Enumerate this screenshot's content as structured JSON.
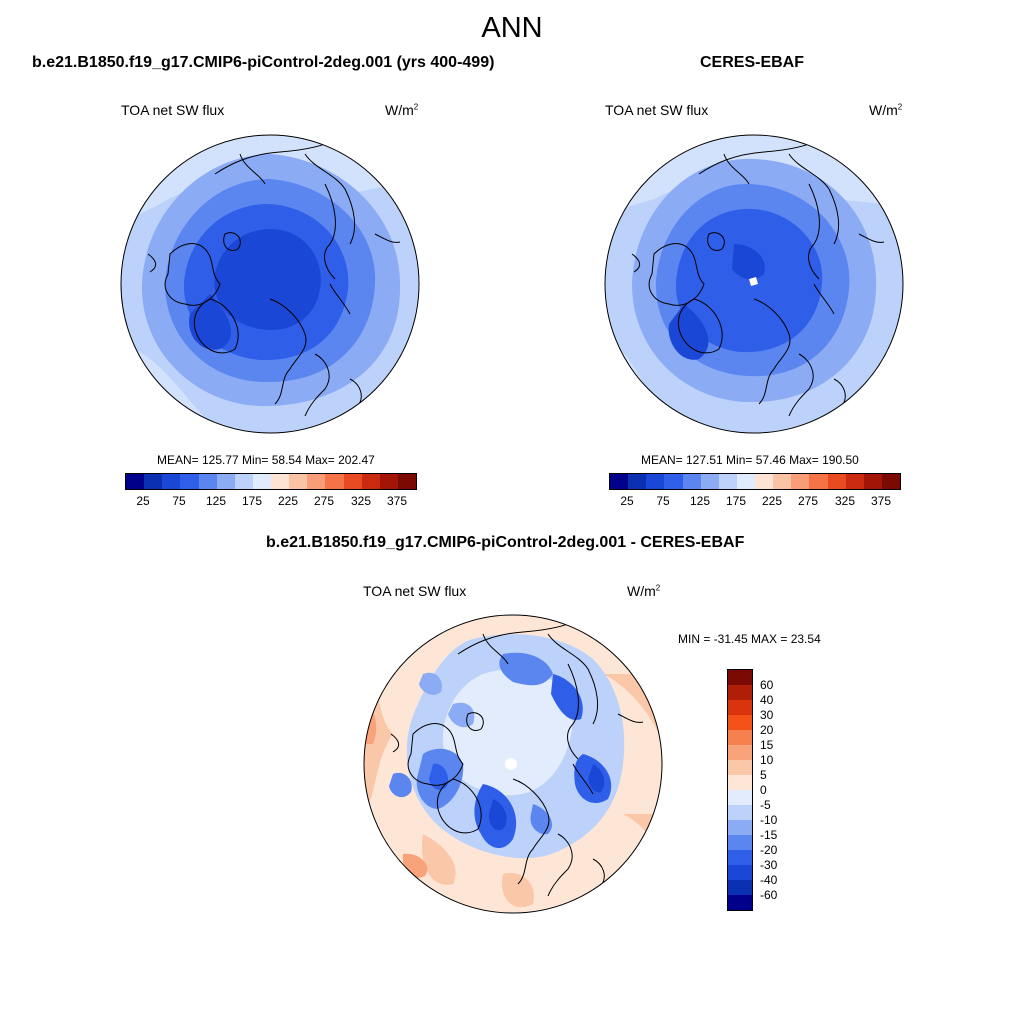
{
  "title": "ANN",
  "panels": {
    "model": {
      "title": "b.e21.B1850.f19_g17.CMIP6-piControl-2deg.001 (yrs 400-499)",
      "variable": "TOA net SW flux",
      "units_base": "W/m",
      "units_exp": "2",
      "stats": "MEAN= 125.77  Min=  58.54  Max= 202.47",
      "colorbar_ticks": [
        "25",
        "75",
        "125",
        "175",
        "225",
        "275",
        "325",
        "375"
      ]
    },
    "obs": {
      "title": "CERES-EBAF",
      "variable": "TOA net SW flux",
      "units_base": "W/m",
      "units_exp": "2",
      "stats": "MEAN= 127.51  Min=  57.46  Max= 190.50",
      "colorbar_ticks": [
        "25",
        "75",
        "125",
        "175",
        "225",
        "275",
        "325",
        "375"
      ]
    },
    "diff": {
      "title": "b.e21.B1850.f19_g17.CMIP6-piControl-2deg.001 - CERES-EBAF",
      "variable": "TOA net SW flux",
      "units_base": "W/m",
      "units_exp": "2",
      "stats": "MIN = -31.45 MAX =  23.54",
      "colorbar_ticks": [
        "60",
        "40",
        "30",
        "20",
        "15",
        "10",
        "5",
        "0",
        "-5",
        "-10",
        "-15",
        "-20",
        "-30",
        "-40",
        "-60"
      ]
    }
  },
  "colors": {
    "abs_scale": [
      "#00008a",
      "#0a2fb0",
      "#1a47d6",
      "#2f5fe8",
      "#5b86f0",
      "#8cabf5",
      "#bcd2fa",
      "#e0ecfd",
      "#fde3d3",
      "#fbc3a6",
      "#f99d78",
      "#f47448",
      "#e84a22",
      "#c92a10",
      "#a31507",
      "#7a0a03"
    ],
    "diff_scale": [
      "#7a0a03",
      "#b01e08",
      "#d8340e",
      "#f35318",
      "#f6804e",
      "#f8a37a",
      "#fbc7a9",
      "#fde6d6",
      "#e2ecfd",
      "#bcd2fa",
      "#8cabf5",
      "#5b86f0",
      "#2f5fe8",
      "#1a47d6",
      "#0a2fb0",
      "#00008a"
    ]
  }
}
